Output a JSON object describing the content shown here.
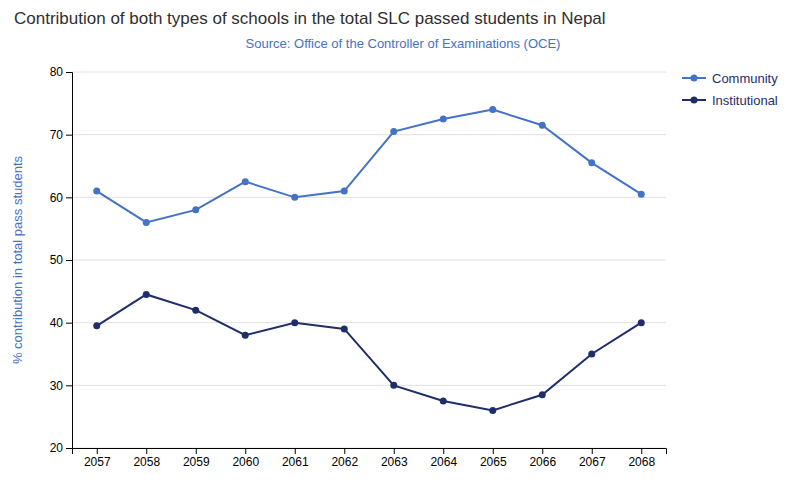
{
  "chart_data": {
    "type": "line",
    "title": "Contribution of both types of schools in the total SLC passed students in Nepal",
    "subtitle": "Source: Office of the Controller of Examinations (OCE)",
    "ylabel": "% contribution in total pass students",
    "categories": [
      "2057",
      "2058",
      "2059",
      "2060",
      "2061",
      "2062",
      "2063",
      "2064",
      "2065",
      "2066",
      "2067",
      "2068"
    ],
    "series": [
      {
        "name": "Community",
        "color": "#4472c4",
        "marker": "circle",
        "line_style": "solid",
        "values": [
          61,
          56,
          58,
          62.5,
          60,
          61,
          70.5,
          72.5,
          74,
          71.5,
          65.5,
          60.5
        ]
      },
      {
        "name": "Institutional",
        "color": "#1f2d6b",
        "marker": "circle",
        "line_style": "solid",
        "values": [
          39.5,
          44.5,
          42,
          38,
          40,
          39,
          30,
          27.5,
          26,
          28.5,
          35,
          40
        ]
      }
    ],
    "ylim": [
      20,
      80
    ],
    "yticks": [
      20,
      30,
      40,
      50,
      60,
      70,
      80
    ],
    "grid": true,
    "legend": "upper right"
  }
}
